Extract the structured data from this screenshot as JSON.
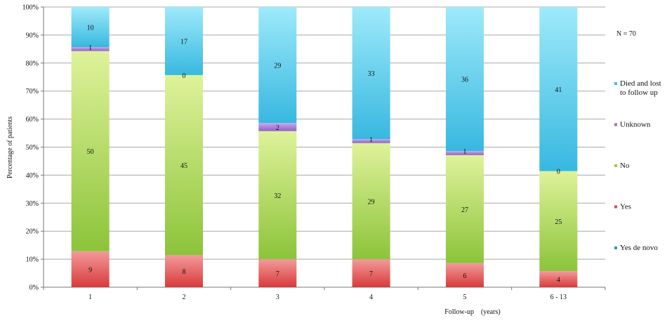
{
  "chart_data": {
    "type": "bar",
    "stacked": true,
    "normalized": true,
    "title": "",
    "xlabel": "Follow-up    (years)",
    "ylabel": "Percentage of patients",
    "annotation": "N = 70",
    "ylim": [
      0,
      100
    ],
    "ytick_labels": [
      "0%",
      "10%",
      "20%",
      "30%",
      "40%",
      "50%",
      "60%",
      "70%",
      "80%",
      "90%",
      "100%"
    ],
    "grid": true,
    "legend_position": "right",
    "categories": [
      "1",
      "2",
      "3",
      "4",
      "5",
      "6 - 13"
    ],
    "series": [
      {
        "name": "Yes de novo",
        "values": [
          0,
          0,
          0,
          0,
          0,
          0
        ],
        "color": "#3a8fd6"
      },
      {
        "name": "Yes",
        "values": [
          9,
          8,
          7,
          7,
          6,
          4
        ],
        "color": "#e24a4a"
      },
      {
        "name": "No",
        "values": [
          50,
          45,
          32,
          29,
          27,
          25
        ],
        "color": "#9ccc3c"
      },
      {
        "name": "Unknown",
        "values": [
          1,
          0,
          2,
          1,
          1,
          0
        ],
        "color": "#9b6fc9"
      },
      {
        "name": "Died and lost to follow up",
        "values": [
          10,
          17,
          29,
          33,
          36,
          41
        ],
        "color": "#3cc0e6"
      }
    ],
    "data_labels": [
      {
        "Yes": "9",
        "No": "50",
        "Unknown": "1",
        "Died and lost to follow up": "10"
      },
      {
        "Yes": "8",
        "No": "45",
        "Unknown": "0",
        "Died and lost to follow up": "17"
      },
      {
        "Yes": "7",
        "No": "32",
        "Unknown": "2",
        "Died and lost to follow up": "29"
      },
      {
        "Yes": "7",
        "No": "29",
        "Unknown": "1",
        "Died and lost to follow up": "33"
      },
      {
        "Yes": "6",
        "No": "27",
        "Unknown": "1",
        "Died and lost to follow up": "36"
      },
      {
        "Yes": "4",
        "No": "25",
        "Unknown": "0",
        "Died and lost to follow up": "41"
      }
    ],
    "legend": {
      "entries": [
        [
          "Died and lost",
          "to follow up"
        ],
        [
          "Unknown"
        ],
        [
          "No"
        ],
        [
          "Yes"
        ],
        [
          "Yes de novo"
        ]
      ]
    }
  }
}
